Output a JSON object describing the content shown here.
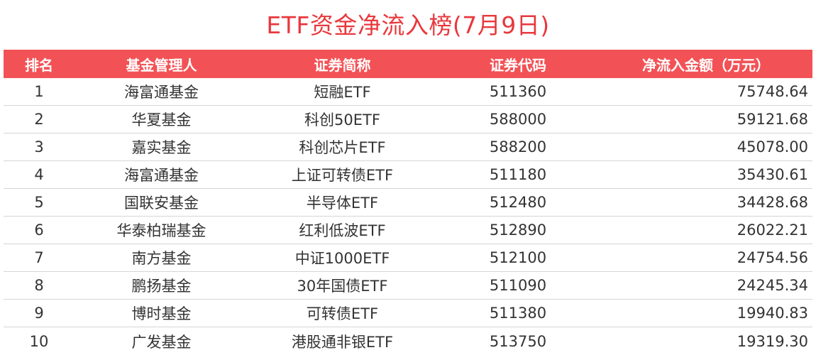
{
  "title": "ETF资金净流入榜(7月9日)",
  "colors": {
    "title": "#e8383d",
    "header_bg": "#f25256",
    "header_text": "#ffffff",
    "body_text": "#333333"
  },
  "table": {
    "headers": [
      "排名",
      "基金管理人",
      "证券简称",
      "证券代码",
      "净流入金额（万元）"
    ],
    "rows": [
      {
        "rank": "1",
        "manager": "海富通基金",
        "name": "短融ETF",
        "code": "511360",
        "amount": "75748.64"
      },
      {
        "rank": "2",
        "manager": "华夏基金",
        "name": "科创50ETF",
        "code": "588000",
        "amount": "59121.68"
      },
      {
        "rank": "3",
        "manager": "嘉实基金",
        "name": "科创芯片ETF",
        "code": "588200",
        "amount": "45078.00"
      },
      {
        "rank": "4",
        "manager": "海富通基金",
        "name": "上证可转债ETF",
        "code": "511180",
        "amount": "35430.61"
      },
      {
        "rank": "5",
        "manager": "国联安基金",
        "name": "半导体ETF",
        "code": "512480",
        "amount": "34428.68"
      },
      {
        "rank": "6",
        "manager": "华泰柏瑞基金",
        "name": "红利低波ETF",
        "code": "512890",
        "amount": "26022.21"
      },
      {
        "rank": "7",
        "manager": "南方基金",
        "name": "中证1000ETF",
        "code": "512100",
        "amount": "24754.56"
      },
      {
        "rank": "8",
        "manager": "鹏扬基金",
        "name": "30年国债ETF",
        "code": "511090",
        "amount": "24245.34"
      },
      {
        "rank": "9",
        "manager": "博时基金",
        "name": "可转债ETF",
        "code": "511380",
        "amount": "19940.83"
      },
      {
        "rank": "10",
        "manager": "广发基金",
        "name": "港股通非银ETF",
        "code": "513750",
        "amount": "19319.30"
      }
    ]
  }
}
